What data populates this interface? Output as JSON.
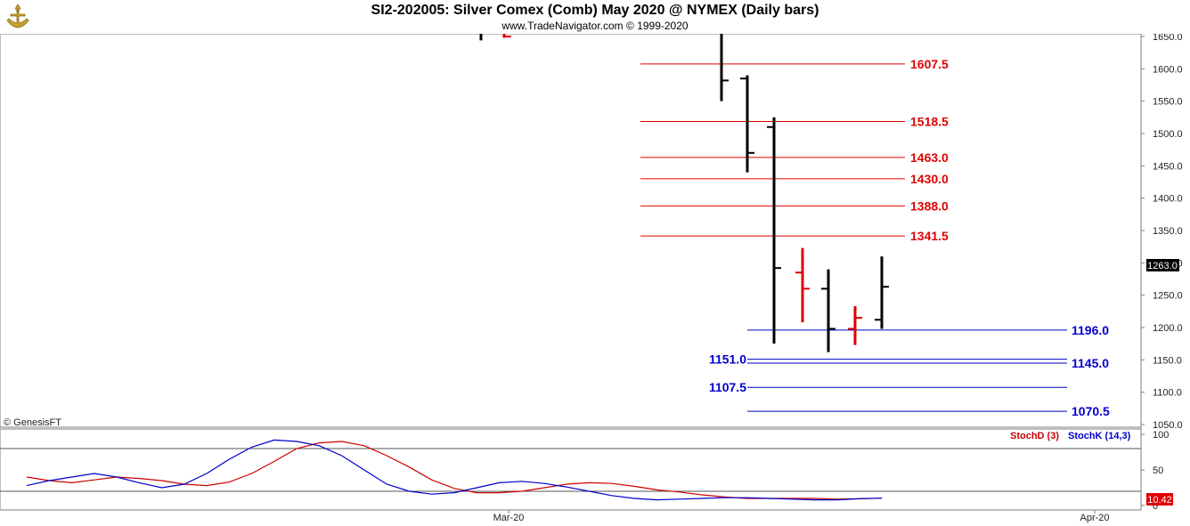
{
  "header": {
    "title": "SI2-202005:  Silver Comex (Comb) May 2020 @ NYMEX  (Daily bars)",
    "subtitle": "www.TradeNavigator.com © 1999-2020",
    "copyright": "© GenesisFT"
  },
  "colors": {
    "resistance": "#e00000",
    "support": "#0000cc",
    "bar_up": "#000000",
    "bar_down": "#e00000",
    "stoch_d": "#cc0000",
    "stoch_k": "#0000cc",
    "logo": "#c9a227"
  },
  "chart_data": [
    {
      "type": "ohlc",
      "title": "SI2-202005:  Silver Comex (Comb) May 2020 @ NYMEX  (Daily bars)",
      "ylim": [
        1040,
        1660
      ],
      "y_ticks": [
        "1650.0",
        "1600.0",
        "1550.0",
        "1500.0",
        "1450.0",
        "1400.0",
        "1350.0",
        "1300.0",
        "1250.0",
        "1200.0",
        "1150.0",
        "1100.0",
        "1050.0"
      ],
      "x_ticks": [
        "Mar-20",
        "Apr-20"
      ],
      "last_price": "1263.0",
      "bars": [
        {
          "color": "black",
          "open": 1665,
          "high": 1665,
          "low": 1644,
          "close": 1660
        },
        {
          "color": "red",
          "open": 1660,
          "high": 1665,
          "low": 1648,
          "close": 1650
        },
        {
          "color": "black",
          "open": 1665,
          "high": 1665,
          "low": 1550,
          "close": 1582
        },
        {
          "color": "black",
          "open": 1585,
          "high": 1590,
          "low": 1440,
          "close": 1470
        },
        {
          "color": "black",
          "open": 1510,
          "high": 1525,
          "low": 1175,
          "close": 1292
        },
        {
          "color": "red",
          "open": 1285,
          "high": 1323,
          "low": 1208,
          "close": 1260
        },
        {
          "color": "black",
          "open": 1260,
          "high": 1290,
          "low": 1162,
          "close": 1198
        },
        {
          "color": "red",
          "open": 1198,
          "high": 1233,
          "low": 1173,
          "close": 1215
        },
        {
          "color": "black",
          "open": 1212,
          "high": 1310,
          "low": 1198,
          "close": 1263
        }
      ],
      "resistance_levels": [
        "1607.5",
        "1518.5",
        "1463.0",
        "1430.0",
        "1388.0",
        "1341.5"
      ],
      "support_levels_right": [
        "1196.0",
        "1145.0",
        "1070.5"
      ],
      "support_levels_left": [
        "1151.0",
        "1107.5"
      ]
    },
    {
      "type": "line",
      "ylim": [
        0,
        100
      ],
      "y_ticks": [
        "100",
        "50",
        "0"
      ],
      "series": [
        {
          "name": "StochD (3)",
          "color": "#cc0000",
          "values": [
            40,
            35,
            32,
            36,
            40,
            38,
            35,
            30,
            28,
            33,
            45,
            62,
            80,
            88,
            90,
            84,
            70,
            54,
            36,
            24,
            18,
            18,
            20,
            25,
            30,
            32,
            31,
            27,
            22,
            19,
            15,
            12,
            10,
            10,
            10,
            10,
            9,
            9.5,
            10.4
          ]
        },
        {
          "name": "StochK (14,3)",
          "color": "#0000cc",
          "values": [
            28,
            35,
            40,
            45,
            40,
            32,
            25,
            30,
            45,
            65,
            82,
            92,
            90,
            84,
            70,
            50,
            30,
            20,
            16,
            18,
            25,
            32,
            34,
            31,
            26,
            20,
            14,
            10,
            8,
            9,
            10,
            11,
            11,
            10,
            9,
            8,
            8,
            9.5,
            10.42
          ]
        }
      ],
      "last_value": "10.42",
      "h_lines": [
        80,
        20
      ]
    }
  ]
}
